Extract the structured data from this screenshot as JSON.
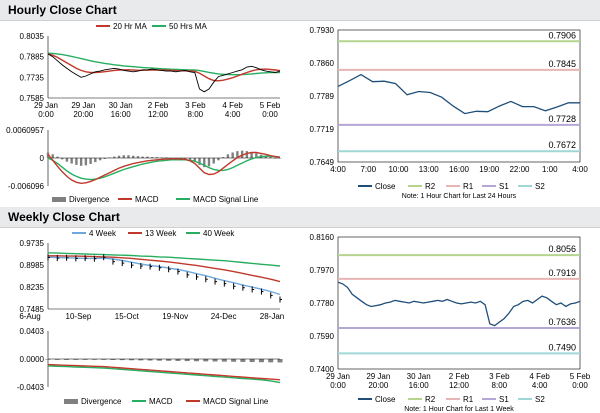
{
  "sections": {
    "hourly_title": "Hourly Close Chart",
    "weekly_title": "Weekly Close Chart"
  },
  "colors": {
    "close": "#1f4e79",
    "ma_short": "#c0392b",
    "ma_long": "#27ae60",
    "sma4": "#6fa8dc",
    "r2": "#b5d48e",
    "r1": "#e8b4b4",
    "s1": "#b4a7d6",
    "s2": "#9fd6d6",
    "divergence": "#808080"
  },
  "chart_data": [
    {
      "id": "hourly_price",
      "type": "line",
      "legend": [
        "20 Hr MA",
        "50 Hrs MA"
      ],
      "y_ticks": [
        "0.8035",
        "0.7885",
        "0.7735",
        "0.7585"
      ],
      "ylim": [
        0.7585,
        0.8035
      ],
      "x_ticks": [
        [
          "29 Jan",
          "0:00"
        ],
        [
          "29 Jan",
          "20:00"
        ],
        [
          "30 Jan",
          "16:00"
        ],
        [
          "2 Feb",
          "12:00"
        ],
        [
          "3 Feb",
          "8:00"
        ],
        [
          "4 Feb",
          "4:00"
        ],
        [
          "5 Feb",
          "0:00"
        ]
      ],
      "close": [
        0.7905,
        0.7885,
        0.7855,
        0.7825,
        0.78,
        0.7775,
        0.7755,
        0.7735,
        0.7745,
        0.776,
        0.7775,
        0.778,
        0.779,
        0.7795,
        0.78,
        0.7795,
        0.7785,
        0.778,
        0.7775,
        0.778,
        0.779,
        0.779,
        0.7795,
        0.779,
        0.7785,
        0.778,
        0.778,
        0.7775,
        0.778,
        0.7785,
        0.7775,
        0.777,
        0.765,
        0.763,
        0.765,
        0.77,
        0.774,
        0.775,
        0.776,
        0.777,
        0.778,
        0.779,
        0.781,
        0.7815,
        0.7805,
        0.779,
        0.778,
        0.7775,
        0.777,
        0.778
      ],
      "ma_short": [
        0.7905,
        0.7895,
        0.788,
        0.786,
        0.784,
        0.782,
        0.78,
        0.7785,
        0.7775,
        0.777,
        0.777,
        0.7772,
        0.7776,
        0.778,
        0.7785,
        0.7788,
        0.779,
        0.779,
        0.7788,
        0.7786,
        0.7786,
        0.7787,
        0.7788,
        0.7789,
        0.7788,
        0.7787,
        0.7786,
        0.7784,
        0.7783,
        0.7782,
        0.7781,
        0.7779,
        0.7765,
        0.7745,
        0.7725,
        0.7712,
        0.771,
        0.7714,
        0.7722,
        0.7732,
        0.7745,
        0.7758,
        0.777,
        0.7782,
        0.779,
        0.7794,
        0.7795,
        0.7792,
        0.7788,
        0.7784
      ],
      "ma_long": [
        0.791,
        0.7908,
        0.7905,
        0.79,
        0.7894,
        0.7887,
        0.7879,
        0.7871,
        0.7863,
        0.7855,
        0.7848,
        0.7842,
        0.7836,
        0.7831,
        0.7826,
        0.7822,
        0.7818,
        0.7815,
        0.7812,
        0.7809,
        0.7806,
        0.7804,
        0.7802,
        0.78,
        0.7798,
        0.7796,
        0.7794,
        0.7793,
        0.7791,
        0.779,
        0.7789,
        0.7788,
        0.7784,
        0.7778,
        0.7771,
        0.7765,
        0.776,
        0.7757,
        0.7755,
        0.7754,
        0.7754,
        0.7755,
        0.7757,
        0.776,
        0.7763,
        0.7766,
        0.7768,
        0.7769,
        0.777,
        0.777
      ]
    },
    {
      "id": "hourly_macd",
      "type": "bar",
      "legend": [
        "Divergence",
        "MACD",
        "MACD Signal Line"
      ],
      "y_ticks": [
        "0.0060957",
        "0",
        "-0.006096"
      ],
      "ylim": [
        -0.006096,
        0.0060957
      ],
      "divergence": [
        0.0012,
        0.0008,
        0.0003,
        -0.0003,
        -0.0008,
        -0.0012,
        -0.0015,
        -0.0017,
        -0.0016,
        -0.0013,
        -0.0009,
        -0.0005,
        -0.0002,
        0.0001,
        0.0003,
        0.0005,
        0.0006,
        0.0006,
        0.0005,
        0.0004,
        0.0003,
        0.0003,
        0.0002,
        0.0002,
        0.0001,
        0.0001,
        0.0,
        -0.0001,
        -0.0001,
        -0.0002,
        -0.0004,
        -0.0008,
        -0.0015,
        -0.002,
        -0.0018,
        -0.0012,
        -0.0005,
        0.0002,
        0.0008,
        0.0012,
        0.0015,
        0.0016,
        0.0015,
        0.0013,
        0.001,
        0.0007,
        0.0004,
        0.0002,
        0.0,
        -0.0001
      ],
      "macd": [
        0.0008,
        -0.0005,
        -0.0018,
        -0.003,
        -0.004,
        -0.0048,
        -0.0053,
        -0.0055,
        -0.0054,
        -0.0051,
        -0.0047,
        -0.0042,
        -0.0037,
        -0.0032,
        -0.0027,
        -0.0022,
        -0.0018,
        -0.0015,
        -0.0012,
        -0.001,
        -0.0008,
        -0.0006,
        -0.0005,
        -0.0004,
        -0.0003,
        -0.0002,
        -0.0002,
        -0.0002,
        -0.0002,
        -0.0003,
        -0.0006,
        -0.0012,
        -0.0022,
        -0.0032,
        -0.0036,
        -0.0035,
        -0.003,
        -0.0022,
        -0.0014,
        -0.0006,
        0.0001,
        0.0006,
        0.001,
        0.0012,
        0.0012,
        0.001,
        0.0008,
        0.0005,
        0.0003,
        0.0001
      ],
      "signal": [
        0.0,
        -0.0005,
        -0.0012,
        -0.002,
        -0.0028,
        -0.0035,
        -0.004,
        -0.0044,
        -0.0046,
        -0.0047,
        -0.0046,
        -0.0044,
        -0.0041,
        -0.0037,
        -0.0033,
        -0.0029,
        -0.0025,
        -0.0022,
        -0.0019,
        -0.0016,
        -0.0013,
        -0.0011,
        -0.0009,
        -0.0007,
        -0.0006,
        -0.0005,
        -0.0004,
        -0.0004,
        -0.0004,
        -0.0004,
        -0.0005,
        -0.0007,
        -0.0011,
        -0.0016,
        -0.0021,
        -0.0025,
        -0.0027,
        -0.0027,
        -0.0025,
        -0.0021,
        -0.0016,
        -0.0011,
        -0.0006,
        -0.0002,
        0.0001,
        0.0003,
        0.0004,
        0.0004,
        0.0003,
        0.0002
      ]
    },
    {
      "id": "hourly_24h",
      "type": "line",
      "legend": [
        "Close",
        "R2",
        "R1",
        "S1",
        "S2"
      ],
      "y_ticks": [
        "0.7930",
        "0.7860",
        "0.7789",
        "0.7719",
        "0.7649"
      ],
      "ylim": [
        0.7649,
        0.793
      ],
      "x_ticks": [
        "4:00",
        "7:00",
        "10:00",
        "13:00",
        "16:00",
        "19:00",
        "22:00",
        "1:00",
        "4:00"
      ],
      "levels": {
        "R2": 0.7906,
        "R1": 0.7845,
        "S1": 0.7728,
        "S2": 0.7672
      },
      "level_labels": {
        "R2": "0.7906",
        "R1": "0.7845",
        "S1": "0.7728",
        "S2": "0.7672"
      },
      "close": [
        0.781,
        0.7822,
        0.7835,
        0.782,
        0.7821,
        0.7816,
        0.7792,
        0.7799,
        0.7797,
        0.7787,
        0.7768,
        0.7752,
        0.7757,
        0.7756,
        0.7768,
        0.7778,
        0.7767,
        0.7767,
        0.7758,
        0.7766,
        0.7775,
        0.7775
      ],
      "note": "Note: 1 Hour Chart for Last 24 Hours"
    },
    {
      "id": "weekly_price",
      "type": "line",
      "legend": [
        "4 Week",
        "13 Week",
        "40 Week"
      ],
      "y_ticks": [
        "0.9735",
        "0.8985",
        "0.8235",
        "0.7485"
      ],
      "ylim": [
        0.7485,
        0.9735
      ],
      "x_ticks": [
        "6-Aug",
        "10-Sep",
        "15-Oct",
        "19-Nov",
        "24-Dec",
        "28-Jan"
      ],
      "close": [
        0.924,
        0.922,
        0.923,
        0.921,
        0.922,
        0.92,
        0.925,
        0.91,
        0.905,
        0.898,
        0.895,
        0.893,
        0.889,
        0.884,
        0.876,
        0.865,
        0.858,
        0.85,
        0.842,
        0.835,
        0.826,
        0.821,
        0.815,
        0.808,
        0.795,
        0.781
      ],
      "sma4": [
        0.925,
        0.924,
        0.923,
        0.922,
        0.921,
        0.921,
        0.922,
        0.919,
        0.914,
        0.908,
        0.902,
        0.897,
        0.893,
        0.888,
        0.883,
        0.877,
        0.869,
        0.862,
        0.853,
        0.845,
        0.838,
        0.83,
        0.823,
        0.816,
        0.808,
        0.798
      ],
      "sma13": [
        0.93,
        0.93,
        0.929,
        0.929,
        0.928,
        0.927,
        0.926,
        0.925,
        0.923,
        0.921,
        0.918,
        0.915,
        0.912,
        0.909,
        0.905,
        0.901,
        0.897,
        0.892,
        0.887,
        0.882,
        0.876,
        0.87,
        0.863,
        0.857,
        0.85,
        0.842
      ],
      "sma40": [
        0.94,
        0.939,
        0.938,
        0.937,
        0.936,
        0.935,
        0.934,
        0.933,
        0.932,
        0.931,
        0.929,
        0.928,
        0.926,
        0.925,
        0.923,
        0.921,
        0.919,
        0.917,
        0.915,
        0.913,
        0.91,
        0.907,
        0.904,
        0.901,
        0.898,
        0.895
      ]
    },
    {
      "id": "weekly_macd",
      "type": "bar",
      "legend": [
        "Divergence",
        "MACD",
        "MACD Signal Line"
      ],
      "y_ticks": [
        "0.0403",
        "0.0000",
        "-0.0403"
      ],
      "ylim": [
        -0.0403,
        0.0403
      ],
      "divergence": [
        -0.001,
        -0.0012,
        -0.0013,
        -0.0012,
        -0.0012,
        -0.0011,
        -0.0012,
        -0.0014,
        -0.0016,
        -0.0018,
        -0.002,
        -0.0022,
        -0.0024,
        -0.0026,
        -0.0028,
        -0.003,
        -0.0032,
        -0.0034,
        -0.0036,
        -0.0038,
        -0.004,
        -0.0042,
        -0.0044,
        -0.0046,
        -0.0048,
        -0.005
      ],
      "macd": [
        -0.008,
        -0.0085,
        -0.009,
        -0.0095,
        -0.01,
        -0.0105,
        -0.011,
        -0.012,
        -0.013,
        -0.014,
        -0.015,
        -0.016,
        -0.017,
        -0.018,
        -0.019,
        -0.02,
        -0.021,
        -0.022,
        -0.023,
        -0.024,
        -0.025,
        -0.026,
        -0.027,
        -0.028,
        -0.029,
        -0.03
      ],
      "signal": [
        -0.01,
        -0.0105,
        -0.011,
        -0.0115,
        -0.012,
        -0.0125,
        -0.013,
        -0.014,
        -0.015,
        -0.016,
        -0.017,
        -0.018,
        -0.019,
        -0.02,
        -0.021,
        -0.022,
        -0.023,
        -0.024,
        -0.025,
        -0.026,
        -0.027,
        -0.028,
        -0.029,
        -0.03,
        -0.0315,
        -0.034
      ]
    },
    {
      "id": "weekly_1w",
      "type": "line",
      "legend": [
        "Close",
        "R2",
        "R1",
        "S1",
        "S2"
      ],
      "y_ticks": [
        "0.8160",
        "0.7970",
        "0.7780",
        "0.7590",
        "0.7400"
      ],
      "ylim": [
        0.74,
        0.816
      ],
      "x_ticks": [
        [
          "29 Jan",
          "0:00"
        ],
        [
          "29 Jan",
          "20:00"
        ],
        [
          "30 Jan",
          "16:00"
        ],
        [
          "2 Feb",
          "12:00"
        ],
        [
          "3 Feb",
          "8:00"
        ],
        [
          "4 Feb",
          "4:00"
        ],
        [
          "5 Feb",
          "0:00"
        ]
      ],
      "levels": {
        "R2": 0.8056,
        "R1": 0.7919,
        "S1": 0.7636,
        "S2": 0.749
      },
      "level_labels": {
        "R2": "0.8056",
        "R1": "0.7919",
        "S1": "0.7636",
        "S2": "0.7490"
      },
      "close": [
        0.79,
        0.789,
        0.787,
        0.783,
        0.781,
        0.779,
        0.777,
        0.776,
        0.7765,
        0.777,
        0.778,
        0.7785,
        0.7795,
        0.779,
        0.7785,
        0.778,
        0.779,
        0.7785,
        0.778,
        0.7785,
        0.779,
        0.7795,
        0.779,
        0.78,
        0.779,
        0.778,
        0.7775,
        0.778,
        0.7785,
        0.778,
        0.779,
        0.777,
        0.766,
        0.765,
        0.767,
        0.769,
        0.772,
        0.776,
        0.777,
        0.779,
        0.7795,
        0.778,
        0.78,
        0.782,
        0.781,
        0.779,
        0.777,
        0.778,
        0.776,
        0.7775,
        0.778,
        0.779
      ],
      "note": "Note: 1 Hour Chart for Last 1 Week"
    }
  ]
}
